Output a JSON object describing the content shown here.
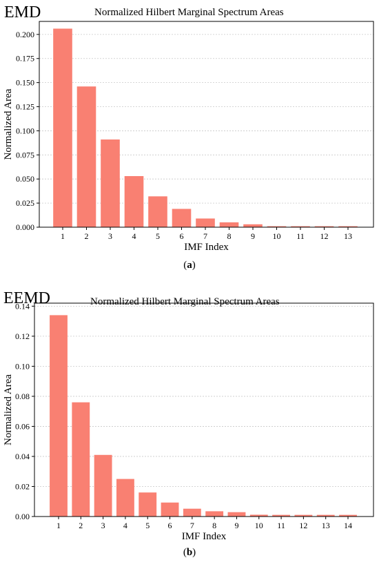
{
  "chart_data": [
    {
      "type": "bar",
      "label": "EMD",
      "title": "Normalized Hilbert Marginal Spectrum Areas",
      "xlabel": "IMF Index",
      "ylabel": "Normalized Area",
      "categories": [
        "1",
        "2",
        "3",
        "4",
        "5",
        "6",
        "7",
        "8",
        "9",
        "10",
        "11",
        "12",
        "13"
      ],
      "values": [
        0.206,
        0.146,
        0.091,
        0.053,
        0.032,
        0.019,
        0.009,
        0.005,
        0.003,
        0.001,
        0.001,
        0.001,
        0.001
      ],
      "yticks": [
        "0.000",
        "0.025",
        "0.050",
        "0.075",
        "0.100",
        "0.125",
        "0.150",
        "0.175",
        "0.200"
      ],
      "ylim": [
        0,
        0.2135
      ],
      "grid": true,
      "color": "#f98072"
    },
    {
      "type": "bar",
      "label": "EEMD",
      "title": "Normalized Hilbert Marginal Spectrum Areas",
      "xlabel": "IMF Index",
      "ylabel": "Normalized Area",
      "categories": [
        "1",
        "2",
        "3",
        "4",
        "5",
        "6",
        "7",
        "8",
        "9",
        "10",
        "11",
        "12",
        "13",
        "14"
      ],
      "values": [
        0.134,
        0.076,
        0.041,
        0.025,
        0.016,
        0.0093,
        0.0052,
        0.0035,
        0.0029,
        0.0012,
        0.0011,
        0.0011,
        0.0011,
        0.0011
      ],
      "yticks": [
        "0.00",
        "0.02",
        "0.04",
        "0.06",
        "0.08",
        "0.10",
        "0.12",
        "0.14"
      ],
      "ylim": [
        0,
        0.142
      ],
      "grid": true,
      "color": "#f98072"
    }
  ],
  "captions": [
    {
      "open": "(",
      "letter": "a",
      "close": ")"
    },
    {
      "open": "(",
      "letter": "b",
      "close": ")"
    }
  ]
}
